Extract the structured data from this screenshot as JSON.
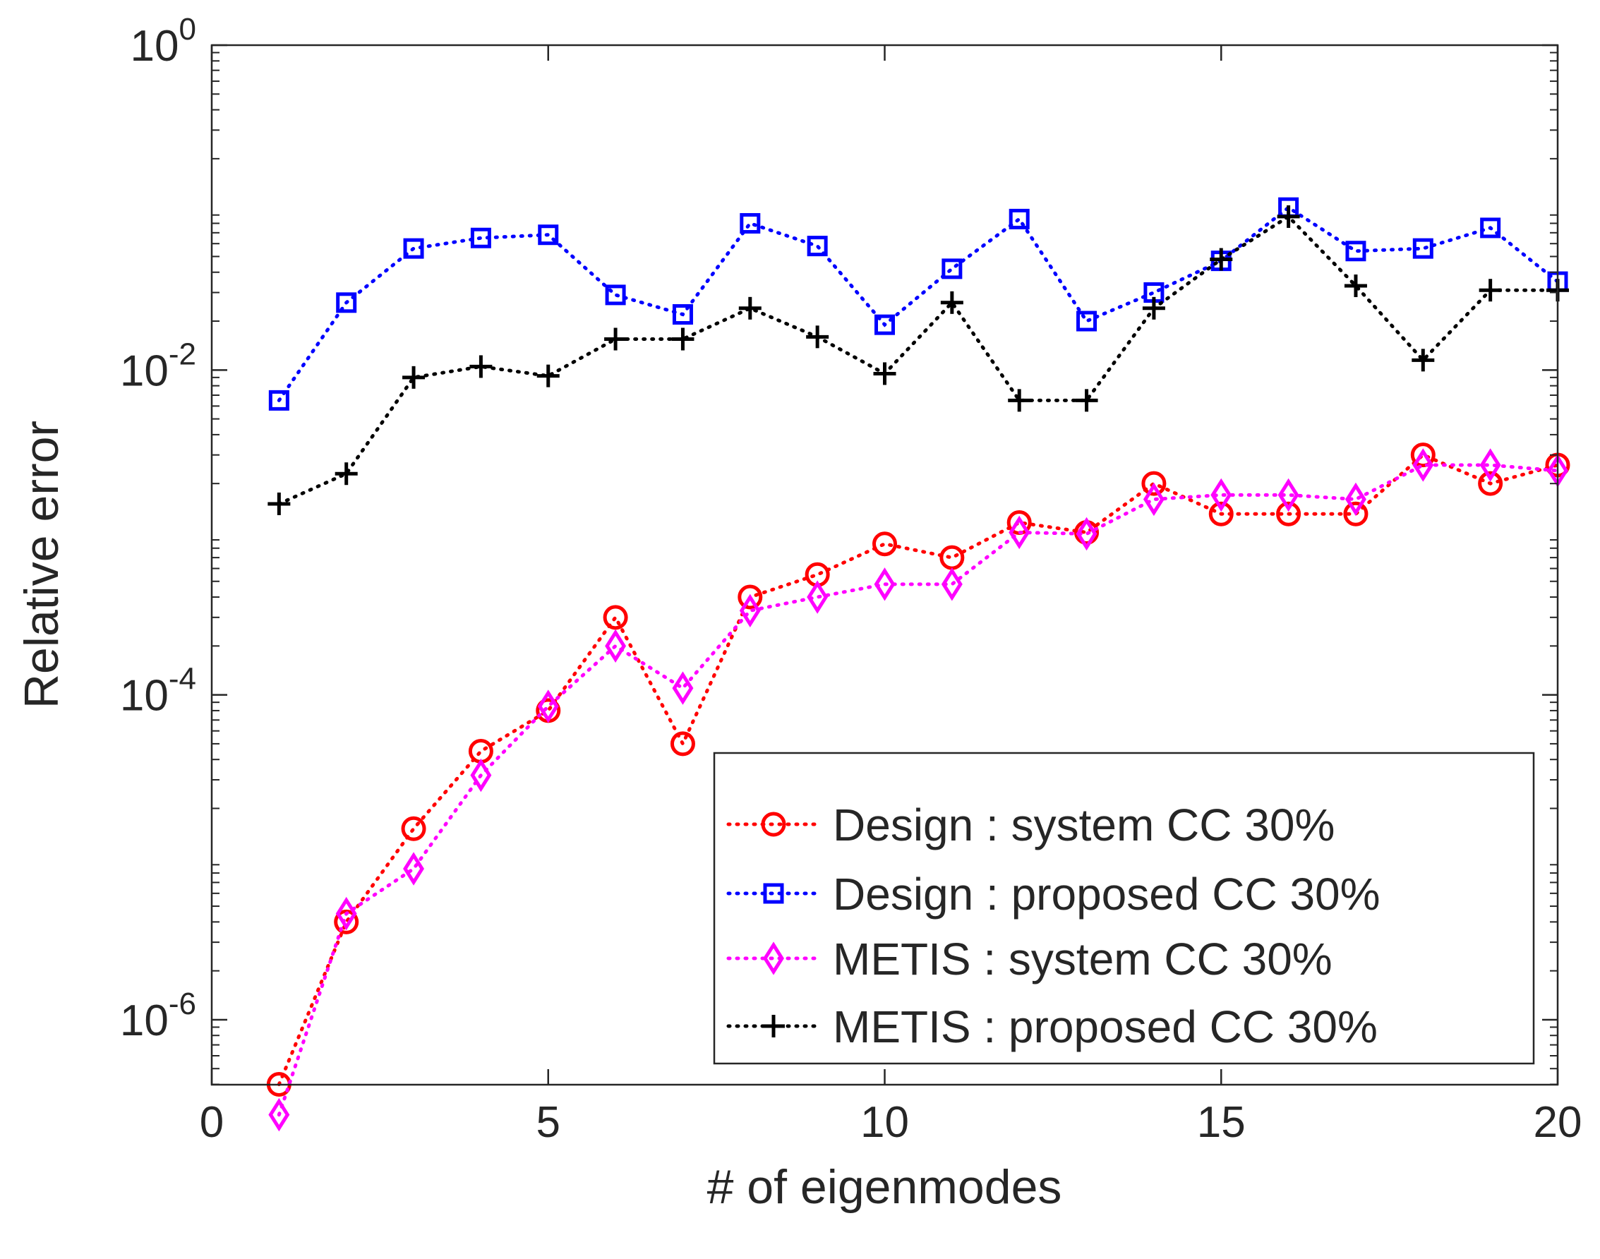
{
  "chart_data": {
    "type": "line",
    "title": "",
    "xlabel": "# of eigenmodes",
    "ylabel": "Relative error",
    "xlim": [
      0,
      20
    ],
    "ylim_log10": [
      -6.4,
      0
    ],
    "yscale": "log",
    "grid": false,
    "legend_position": "lower-right",
    "x_ticks": [
      {
        "value": 0,
        "label": "0"
      },
      {
        "value": 5,
        "label": "5"
      },
      {
        "value": 10,
        "label": "10"
      },
      {
        "value": 15,
        "label": "15"
      },
      {
        "value": 20,
        "label": "20"
      }
    ],
    "y_ticks": [
      {
        "exp": 0,
        "base": "10",
        "sup": "0"
      },
      {
        "exp": -2,
        "base": "10",
        "sup": "-2"
      },
      {
        "exp": -4,
        "base": "10",
        "sup": "-4"
      },
      {
        "exp": -6,
        "base": "10",
        "sup": "-6"
      }
    ],
    "x": [
      1,
      2,
      3,
      4,
      5,
      6,
      7,
      8,
      9,
      10,
      11,
      12,
      13,
      14,
      15,
      16,
      17,
      18,
      19,
      20
    ],
    "series": [
      {
        "name": "Design : system CC 30%",
        "color": "#ff0000",
        "marker": "circle",
        "values": [
          4e-07,
          4e-06,
          1.5e-05,
          4.5e-05,
          8e-05,
          0.0003,
          5e-05,
          0.0004,
          0.00055,
          0.00085,
          0.0007,
          0.00115,
          0.001,
          0.002,
          0.0013,
          0.0013,
          0.0013,
          0.003,
          0.002,
          0.0026
        ]
      },
      {
        "name": "Design : proposed CC 30%",
        "color": "#0000ff",
        "marker": "square",
        "values": [
          0.0065,
          0.026,
          0.056,
          0.065,
          0.068,
          0.029,
          0.022,
          0.08,
          0.058,
          0.019,
          0.042,
          0.085,
          0.02,
          0.03,
          0.047,
          0.1,
          0.054,
          0.056,
          0.075,
          0.035
        ]
      },
      {
        "name": "METIS : system CC 30%",
        "color": "#ff00ff",
        "marker": "diamond",
        "values": [
          2.6e-07,
          4.5e-06,
          8.5e-06,
          3.2e-05,
          8.5e-05,
          0.0002,
          0.00011,
          0.00033,
          0.0004,
          0.00048,
          0.00048,
          0.001,
          0.00098,
          0.0016,
          0.0017,
          0.0017,
          0.0016,
          0.0026,
          0.0026,
          0.0024
        ]
      },
      {
        "name": "METIS : proposed CC 30%",
        "color": "#000000",
        "marker": "plus",
        "values": [
          0.0015,
          0.0023,
          0.009,
          0.0105,
          0.0092,
          0.0155,
          0.0155,
          0.024,
          0.016,
          0.0095,
          0.026,
          0.0065,
          0.0065,
          0.024,
          0.048,
          0.088,
          0.033,
          0.0115,
          0.031,
          0.031
        ]
      }
    ]
  }
}
